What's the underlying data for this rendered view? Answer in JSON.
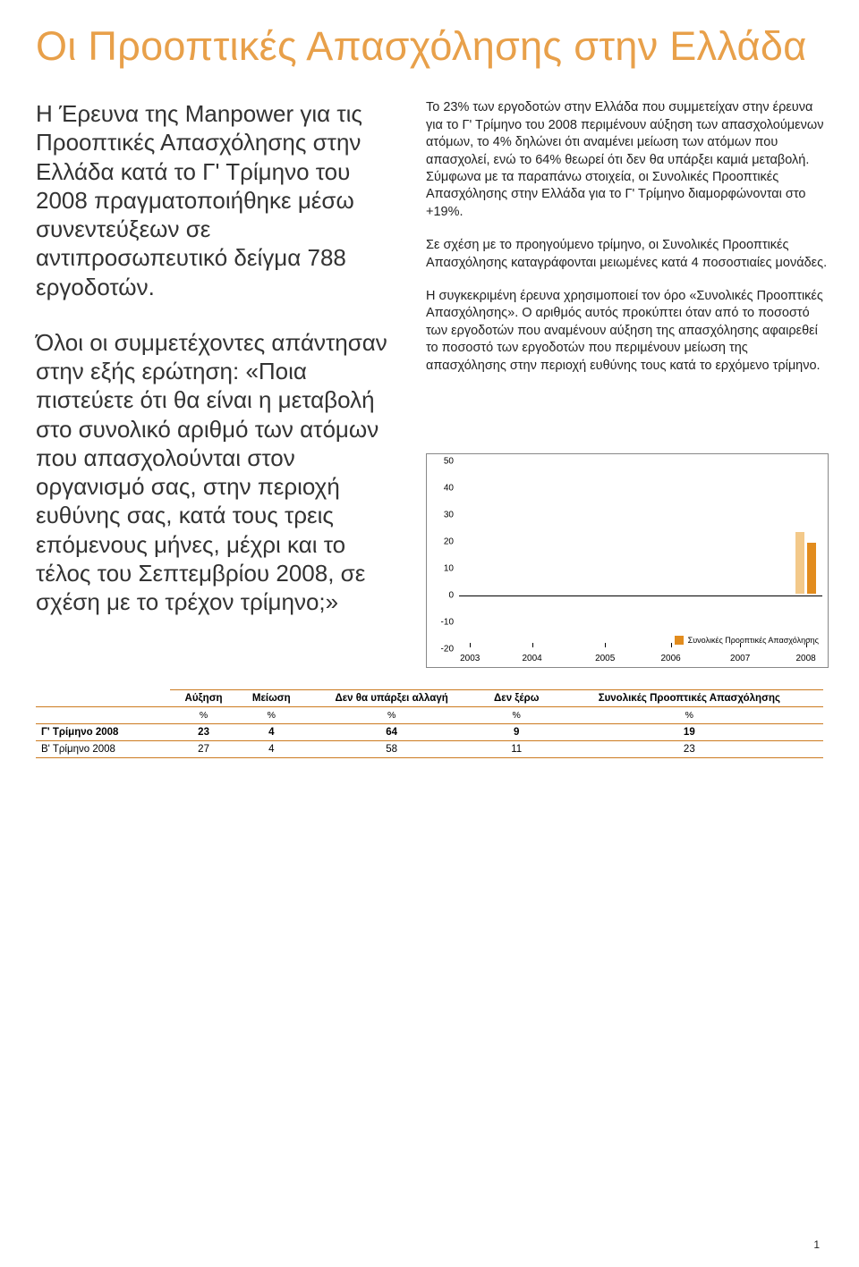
{
  "page": {
    "title": "Οι Προοπτικές Απασχόλησης στην Ελλάδα",
    "number": "1"
  },
  "colors": {
    "accent": "#e8a04a",
    "rule": "#cc7a1f",
    "text": "#222222",
    "bar_light": "#f3c98a",
    "bar_dark": "#e28c1e",
    "chart_border": "#888888"
  },
  "intro": {
    "p1": "Η Έρευνα της Manpower για τις Προοπτικές Απασχόλησης στην Ελλάδα κατά το Γ' Τρίμηνο του 2008 πραγματοποιήθηκε μέσω συνεντεύξεων σε αντιπροσωπευτικό δείγμα 788 εργοδοτών.",
    "p2": "Όλοι οι συμμετέχοντες απά­ντησαν στην εξής ερώτηση: «Ποια πιστεύετε ότι θα είναι η μεταβολή στο συνολικό αριθμό των ατόμων που απασχολούνται στον οργανισμό σας, στην περιοχή ευθύνης σας, κατά τους τρεις επόμενους μήνες, μέχρι και το τέλος του Σεπτεμβρίου 2008, σε σχέση με το τρέχον τρίμηνο;»"
  },
  "body": {
    "p1": "Το 23% των εργοδοτών στην Ελλάδα που συμμετείχαν στην έρευνα για το Γ' Τρίμηνο του 2008 περιμένουν αύξηση των απασχολούμενων ατόμων, το 4% δηλώνει ότι αναμένει μείωση των ατόμων που απασχολεί, ενώ το 64% θεωρεί ότι δεν θα υπάρξει καμιά μεταβολή. Σύμφωνα με τα παραπάνω στοιχεία, οι Συνολικές Προοπτικές Απασχόλησης στην Ελλάδα για το Γ' Τρίμηνο διαμορφώνονται στο +19%.",
    "p2": "Σε σχέση με το προηγούμενο τρίμηνο, οι Συνολικές Προοπτικές Απασχόλησης καταγράφονται μειωμένες κατά 4 ποσοστιαίες μονάδες.",
    "p3": "Η συγκεκριμένη έρευνα χρησιμοποιεί τον όρο «Συνολικές Προοπτικές Απασχόλησης». Ο αριθμός αυτός προκύπτει όταν από το ποσοστό των εργοδοτών που αναμένουν αύξηση της απασχόλησης αφαιρεθεί το ποσοστό των εργοδοτών που περιμένουν μείωση της απασχόλησης στην περιοχή ευθύνης τους κατά το ερχόμενο τρίμηνο."
  },
  "chart": {
    "type": "bar",
    "ylim": [
      -20,
      50
    ],
    "yticks": [
      -20,
      -10,
      0,
      10,
      20,
      30,
      40,
      50
    ],
    "xticks": [
      "2003",
      "2004",
      "2005",
      "2006",
      "2007",
      "2008"
    ],
    "legend_label": "Συνολικές Προοπτικές Απασχόλησης",
    "bars": [
      {
        "x_frac": 0.935,
        "value": 23,
        "color": "#f3c98a",
        "width": 10
      },
      {
        "x_frac": 0.965,
        "value": 19,
        "color": "#e28c1e",
        "width": 10
      }
    ],
    "background_color": "#ffffff"
  },
  "table": {
    "columns": [
      "Αύξηση",
      "Μείωση",
      "Δεν θα υπάρξει αλλαγή",
      "Δεν ξέρω",
      "Συνολικές Προοπτικές Απασχόλησης"
    ],
    "unit_row": [
      "%",
      "%",
      "%",
      "%",
      "%"
    ],
    "rows": [
      {
        "label": "Γ' Τρίμηνο 2008",
        "bold": true,
        "cells": [
          "23",
          "4",
          "64",
          "9",
          "19"
        ]
      },
      {
        "label": "Β' Τρίμηνο 2008",
        "bold": false,
        "cells": [
          "27",
          "4",
          "58",
          "11",
          "23"
        ]
      }
    ]
  }
}
